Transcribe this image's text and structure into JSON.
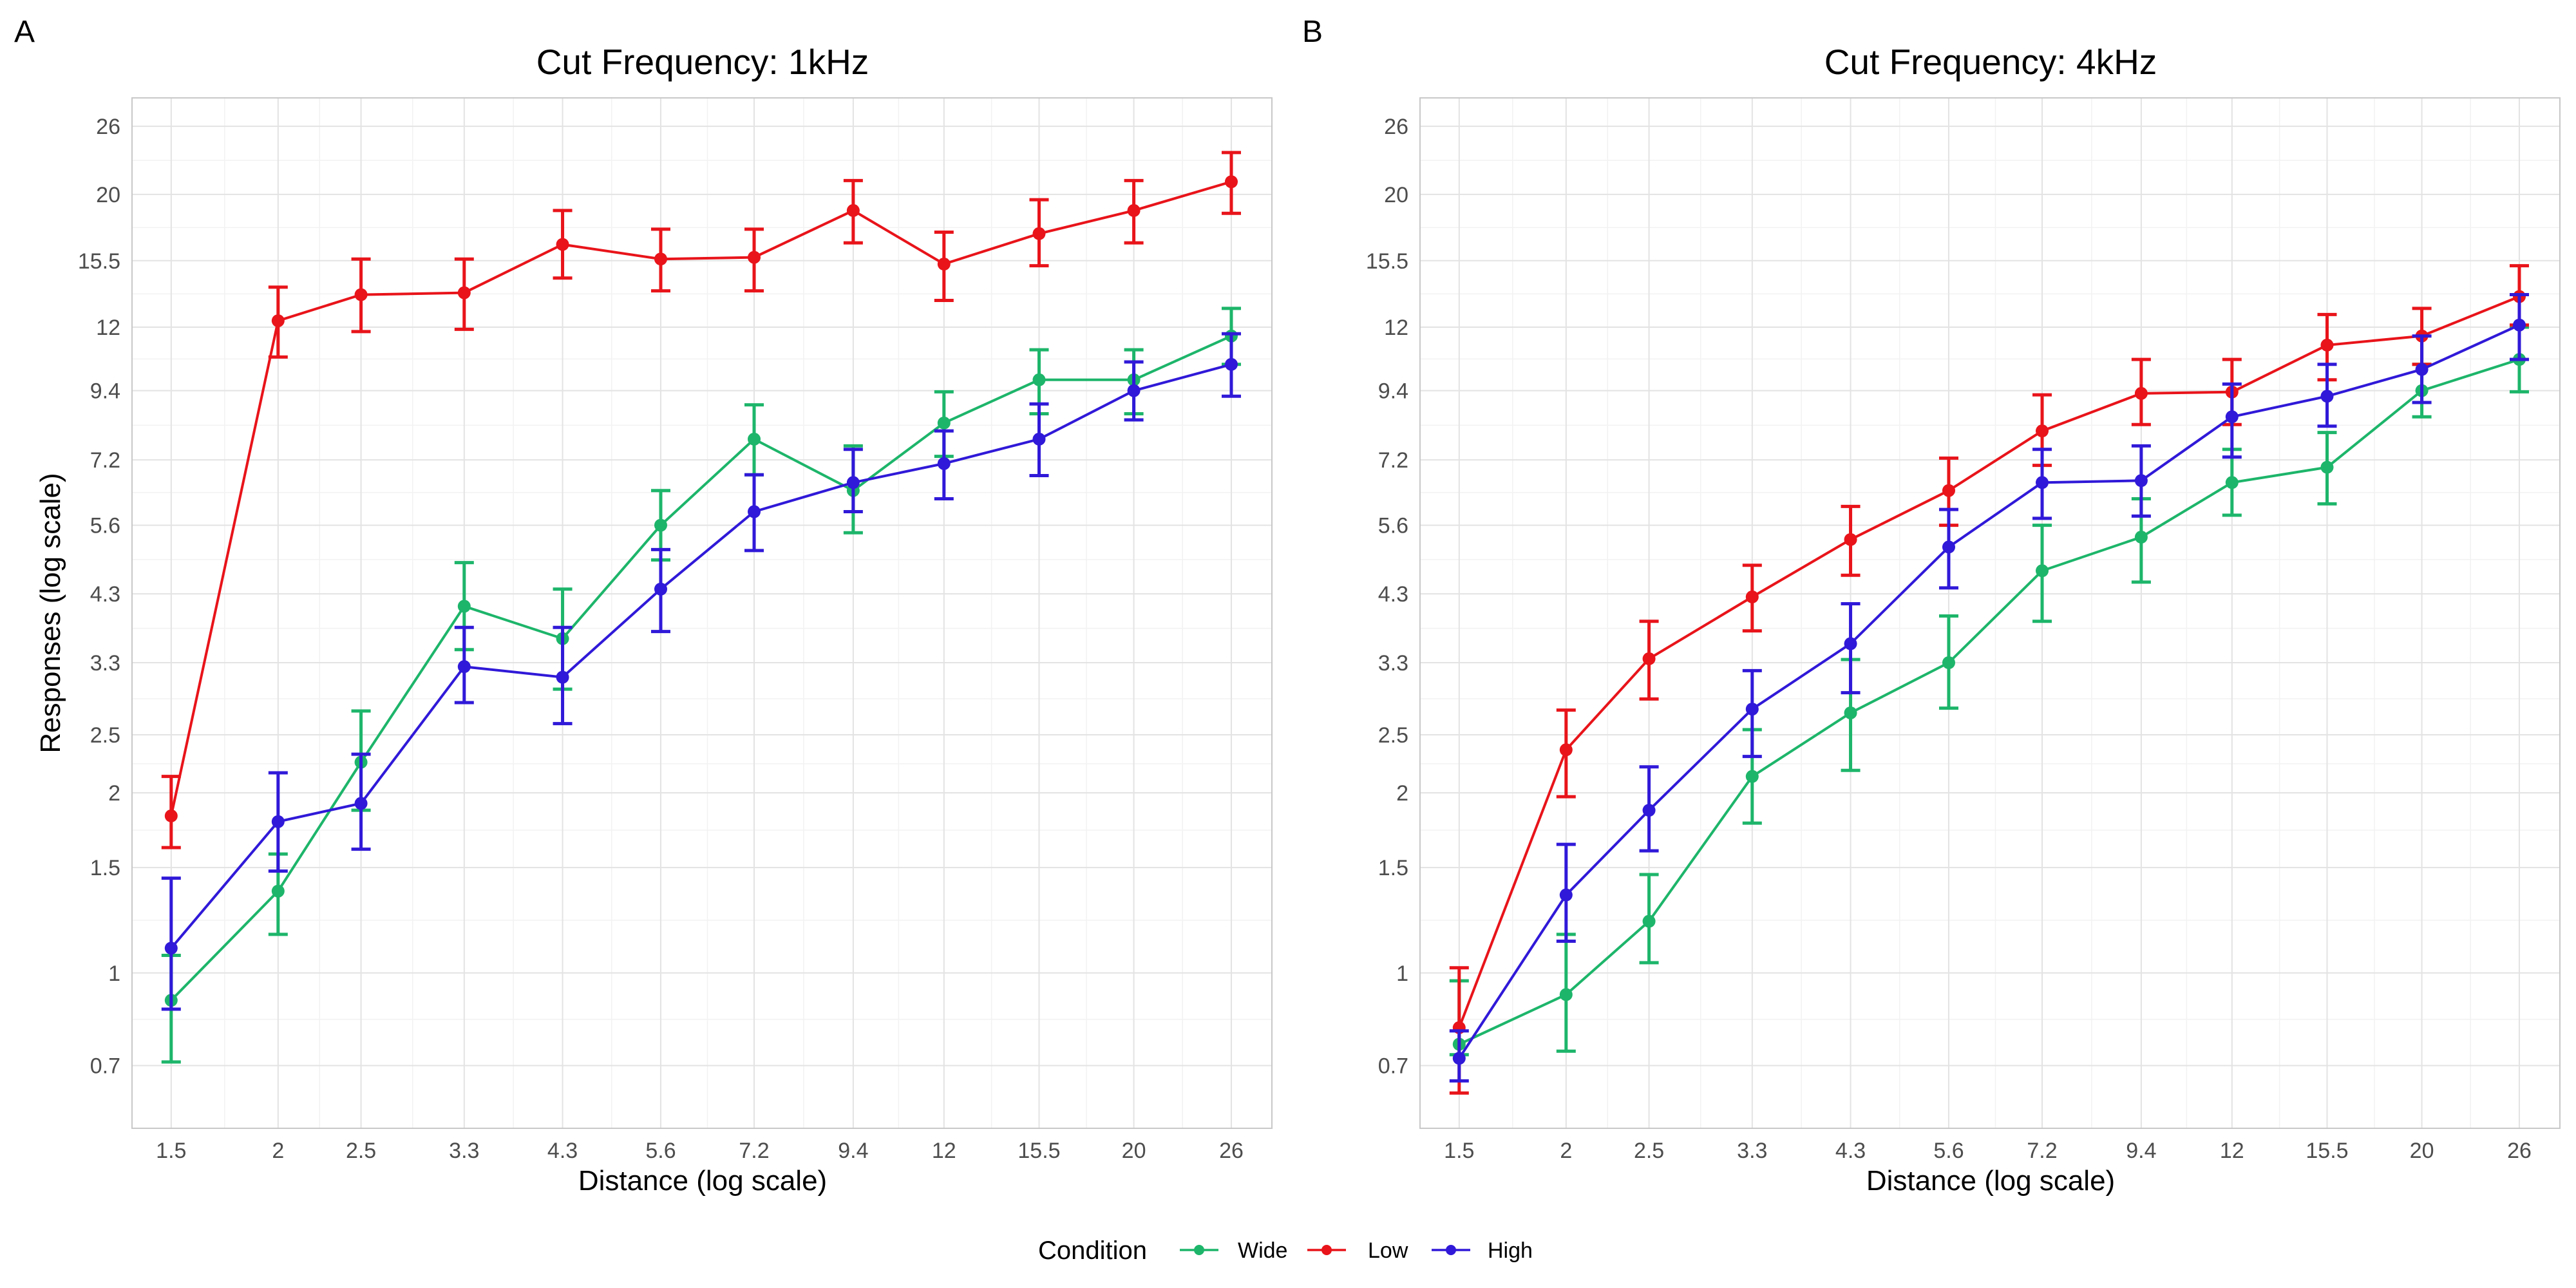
{
  "colors": {
    "Wide": "#1db56a",
    "Low": "#e8141a",
    "High": "#3019d8"
  },
  "legend": {
    "title": "Condition",
    "entries": [
      {
        "name": "Wide"
      },
      {
        "name": "Low"
      },
      {
        "name": "High"
      }
    ],
    "placement": "bottom"
  },
  "chart_data": [
    {
      "type": "line",
      "panel": "A",
      "title": "Cut Frequency: 1kHz",
      "xlabel": "Distance (log scale)",
      "ylabel": "Responses (log scale)",
      "x_scale": "log",
      "y_scale": "log",
      "xlim": [
        1.35,
        29
      ],
      "ylim": [
        0.55,
        29
      ],
      "grid": true,
      "x_ticks": [
        "1.5",
        "2",
        "2.5",
        "3.3",
        "4.3",
        "5.6",
        "7.2",
        "9.4",
        "12",
        "15.5",
        "20",
        "26"
      ],
      "y_ticks": [
        "0.7",
        "1",
        "1.5",
        "2",
        "2.5",
        "3.3",
        "4.3",
        "5.6",
        "7.2",
        "9.4",
        "12",
        "15.5",
        "20",
        "26"
      ],
      "x": [
        1.5,
        2,
        2.5,
        3.3,
        4.3,
        5.6,
        7.2,
        9.4,
        12,
        15.5,
        20,
        26
      ],
      "series": [
        {
          "name": "Wide",
          "values": [
            0.9,
            1.37,
            2.25,
            4.1,
            3.62,
            5.6,
            7.8,
            6.4,
            8.3,
            9.8,
            9.8,
            11.6
          ],
          "lower": [
            0.71,
            1.16,
            1.87,
            3.47,
            2.98,
            4.9,
            6.8,
            5.44,
            7.3,
            8.6,
            8.6,
            10.4
          ],
          "upper": [
            1.07,
            1.58,
            2.74,
            4.85,
            4.38,
            6.4,
            8.9,
            7.6,
            9.36,
            11.0,
            11.0,
            12.9
          ]
        },
        {
          "name": "Low",
          "values": [
            1.83,
            12.3,
            13.6,
            13.7,
            16.5,
            15.6,
            15.7,
            18.8,
            15.3,
            17.2,
            18.8,
            21.0
          ],
          "lower": [
            1.62,
            10.7,
            11.8,
            11.9,
            14.5,
            13.8,
            13.8,
            16.6,
            13.3,
            15.2,
            16.6,
            18.6
          ],
          "upper": [
            2.13,
            14.0,
            15.6,
            15.6,
            18.8,
            17.5,
            17.5,
            21.1,
            17.3,
            19.6,
            21.1,
            23.5
          ]
        },
        {
          "name": "High",
          "values": [
            1.1,
            1.79,
            1.92,
            3.25,
            3.12,
            4.38,
            5.9,
            6.6,
            7.1,
            7.8,
            9.4,
            10.4
          ],
          "lower": [
            0.87,
            1.48,
            1.61,
            2.83,
            2.61,
            3.72,
            5.08,
            5.9,
            6.2,
            6.78,
            8.4,
            9.2
          ],
          "upper": [
            1.44,
            2.16,
            2.32,
            3.78,
            3.78,
            5.1,
            6.8,
            7.5,
            8.05,
            8.93,
            10.5,
            11.7
          ]
        }
      ]
    },
    {
      "type": "line",
      "panel": "B",
      "title": "Cut Frequency: 4kHz",
      "xlabel": "Distance (log scale)",
      "ylabel": "",
      "x_scale": "log",
      "y_scale": "log",
      "xlim": [
        1.35,
        29
      ],
      "ylim": [
        0.55,
        29
      ],
      "grid": true,
      "x_ticks": [
        "1.5",
        "2",
        "2.5",
        "3.3",
        "4.3",
        "5.6",
        "7.2",
        "9.4",
        "12",
        "15.5",
        "20",
        "26"
      ],
      "y_ticks": [
        "0.7",
        "1",
        "1.5",
        "2",
        "2.5",
        "3.3",
        "4.3",
        "5.6",
        "7.2",
        "9.4",
        "12",
        "15.5",
        "20",
        "26"
      ],
      "x": [
        1.5,
        2,
        2.5,
        3.3,
        4.3,
        5.6,
        7.2,
        9.4,
        12,
        15.5,
        20,
        26
      ],
      "series": [
        {
          "name": "Wide",
          "values": [
            0.76,
            0.92,
            1.22,
            2.13,
            2.72,
            3.3,
            4.7,
            5.35,
            6.6,
            7.0,
            9.4,
            10.6
          ],
          "lower": [
            0.73,
            0.74,
            1.04,
            1.78,
            2.18,
            2.77,
            3.87,
            4.5,
            5.82,
            6.08,
            8.5,
            9.36
          ],
          "upper": [
            0.97,
            1.16,
            1.46,
            2.55,
            3.34,
            3.95,
            5.6,
            6.2,
            7.5,
            8.0,
            10.4,
            12.0
          ]
        },
        {
          "name": "Low",
          "values": [
            0.81,
            2.36,
            3.35,
            4.25,
            5.3,
            6.4,
            8.05,
            9.3,
            9.35,
            11.2,
            11.6,
            13.5
          ],
          "lower": [
            0.63,
            1.97,
            2.87,
            3.73,
            4.62,
            5.6,
            7.05,
            8.25,
            8.25,
            9.8,
            10.4,
            12.1
          ],
          "upper": [
            1.02,
            2.75,
            3.87,
            4.8,
            6.02,
            7.25,
            9.25,
            10.6,
            10.6,
            12.6,
            12.9,
            15.2
          ]
        },
        {
          "name": "High",
          "values": [
            0.72,
            1.35,
            1.87,
            2.76,
            3.55,
            5.15,
            6.6,
            6.65,
            8.5,
            9.2,
            10.2,
            12.1
          ],
          "lower": [
            0.66,
            1.13,
            1.6,
            2.3,
            2.94,
            4.4,
            5.75,
            5.8,
            7.28,
            8.2,
            8.98,
            10.6
          ],
          "upper": [
            0.8,
            1.64,
            2.21,
            3.2,
            4.14,
            5.95,
            7.5,
            7.6,
            9.64,
            10.4,
            11.6,
            13.6
          ]
        }
      ]
    }
  ]
}
